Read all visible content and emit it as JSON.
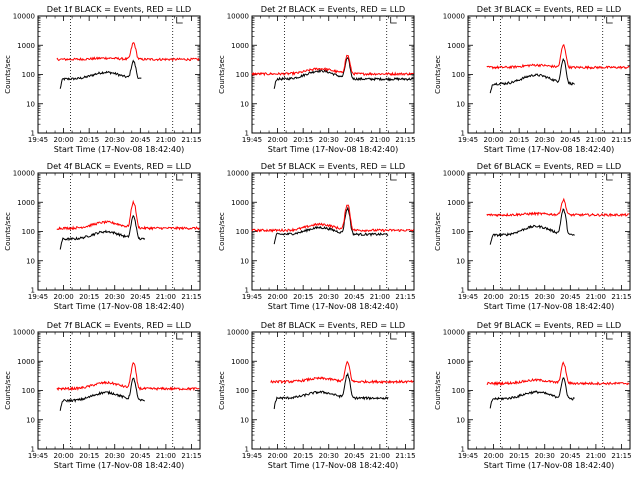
{
  "chart_data": [
    {
      "type": "line",
      "title": "Det 1f BLACK = Events, RED = LLD",
      "xlabel": "Start Time (17-Nov-08 18:42:40)",
      "ylabel": "Counts/sec",
      "yscale": "log",
      "ylim": [
        1,
        10000
      ],
      "xlim": [
        "19:45",
        "21:20"
      ],
      "xticks": [
        "19:45",
        "20:00",
        "20:15",
        "20:30",
        "20:45",
        "21:00",
        "21:15"
      ],
      "yticks": [
        "1",
        "10",
        "100",
        "1000",
        "10000"
      ],
      "vlines": [
        "20:04",
        "21:04"
      ],
      "series": [
        {
          "name": "BLACK = Events",
          "color": "#000000",
          "start": "19:58",
          "end": "20:46",
          "base": 70,
          "hump": 1.7,
          "peak": 280
        },
        {
          "name": "RED = LLD",
          "color": "#ff0000",
          "start": "19:56",
          "end": "21:20",
          "base": 330,
          "hump": 1.1,
          "peak": 1200
        }
      ]
    },
    {
      "type": "line",
      "title": "Det 2f BLACK = Events, RED = LLD",
      "xlabel": "Start Time (17-Nov-08 18:42:40)",
      "ylabel": "Counts/sec",
      "yscale": "log",
      "ylim": [
        1,
        10000
      ],
      "xlim": [
        "19:45",
        "21:20"
      ],
      "xticks": [
        "19:45",
        "20:00",
        "20:15",
        "20:30",
        "20:45",
        "21:00",
        "21:15"
      ],
      "yticks": [
        "1",
        "10",
        "100",
        "1000",
        "10000"
      ],
      "vlines": [
        "20:04",
        "21:04"
      ],
      "series": [
        {
          "name": "BLACK = Events",
          "color": "#000000",
          "start": "19:58",
          "end": "21:20",
          "base": 70,
          "hump": 1.9,
          "peak": 350
        },
        {
          "name": "RED = LLD",
          "color": "#ff0000",
          "start": "19:45",
          "end": "21:20",
          "base": 105,
          "hump": 1.5,
          "peak": 450
        }
      ]
    },
    {
      "type": "line",
      "title": "Det 3f BLACK = Events, RED = LLD",
      "xlabel": "Start Time (17-Nov-08 18:42:40)",
      "ylabel": "Counts/sec",
      "yscale": "log",
      "ylim": [
        1,
        10000
      ],
      "xlim": [
        "19:45",
        "21:20"
      ],
      "xticks": [
        "19:45",
        "20:00",
        "20:15",
        "20:30",
        "20:45",
        "21:00",
        "21:15"
      ],
      "yticks": [
        "1",
        "10",
        "100",
        "1000",
        "10000"
      ],
      "vlines": [
        "20:04",
        "21:04"
      ],
      "series": [
        {
          "name": "BLACK = Events",
          "color": "#000000",
          "start": "19:58",
          "end": "20:48",
          "base": 48,
          "hump": 2.0,
          "peak": 320
        },
        {
          "name": "RED = LLD",
          "color": "#ff0000",
          "start": "19:56",
          "end": "21:20",
          "base": 175,
          "hump": 1.2,
          "peak": 1000
        }
      ]
    },
    {
      "type": "line",
      "title": "Det 4f BLACK = Events, RED = LLD",
      "xlabel": "Start Time (17-Nov-08 18:42:40)",
      "ylabel": "Counts/sec",
      "yscale": "log",
      "ylim": [
        1,
        10000
      ],
      "xlim": [
        "19:45",
        "21:20"
      ],
      "xticks": [
        "19:45",
        "20:00",
        "20:15",
        "20:30",
        "20:45",
        "21:00",
        "21:15"
      ],
      "yticks": [
        "1",
        "10",
        "100",
        "1000",
        "10000"
      ],
      "vlines": [
        "20:04",
        "21:04"
      ],
      "series": [
        {
          "name": "BLACK = Events",
          "color": "#000000",
          "start": "19:58",
          "end": "20:48",
          "base": 55,
          "hump": 1.8,
          "peak": 330
        },
        {
          "name": "RED = LLD",
          "color": "#ff0000",
          "start": "19:56",
          "end": "21:20",
          "base": 130,
          "hump": 1.6,
          "peak": 1000
        }
      ]
    },
    {
      "type": "line",
      "title": "Det 5f BLACK = Events, RED = LLD",
      "xlabel": "Start Time (17-Nov-08 18:42:40)",
      "ylabel": "Counts/sec",
      "yscale": "log",
      "ylim": [
        1,
        10000
      ],
      "xlim": [
        "19:45",
        "21:20"
      ],
      "xticks": [
        "19:45",
        "20:00",
        "20:15",
        "20:30",
        "20:45",
        "21:00",
        "21:15"
      ],
      "yticks": [
        "1",
        "10",
        "100",
        "1000",
        "10000"
      ],
      "vlines": [
        "20:04",
        "21:04"
      ],
      "series": [
        {
          "name": "BLACK = Events",
          "color": "#000000",
          "start": "19:58",
          "end": "21:05",
          "base": 80,
          "hump": 1.7,
          "peak": 600
        },
        {
          "name": "RED = LLD",
          "color": "#ff0000",
          "start": "19:45",
          "end": "21:20",
          "base": 110,
          "hump": 1.6,
          "peak": 850
        }
      ]
    },
    {
      "type": "line",
      "title": "Det 6f BLACK = Events, RED = LLD",
      "xlabel": "Start Time (17-Nov-08 18:42:40)",
      "ylabel": "Counts/sec",
      "yscale": "log",
      "ylim": [
        1,
        10000
      ],
      "xlim": [
        "19:45",
        "21:20"
      ],
      "xticks": [
        "19:45",
        "20:00",
        "20:15",
        "20:30",
        "20:45",
        "21:00",
        "21:15"
      ],
      "yticks": [
        "1",
        "10",
        "100",
        "1000",
        "10000"
      ],
      "vlines": [
        "20:04",
        "21:04"
      ],
      "series": [
        {
          "name": "BLACK = Events",
          "color": "#000000",
          "start": "19:58",
          "end": "20:48",
          "base": 75,
          "hump": 2.0,
          "peak": 550
        },
        {
          "name": "RED = LLD",
          "color": "#ff0000",
          "start": "19:56",
          "end": "21:20",
          "base": 370,
          "hump": 1.1,
          "peak": 1200
        }
      ]
    },
    {
      "type": "line",
      "title": "Det 7f BLACK = Events, RED = LLD",
      "xlabel": "Start Time (17-Nov-08 18:42:40)",
      "ylabel": "Counts/sec",
      "yscale": "log",
      "ylim": [
        1,
        10000
      ],
      "xlim": [
        "19:45",
        "21:20"
      ],
      "xticks": [
        "19:45",
        "20:00",
        "20:15",
        "20:30",
        "20:45",
        "21:00",
        "21:15"
      ],
      "yticks": [
        "1",
        "10",
        "100",
        "1000",
        "10000"
      ],
      "vlines": [
        "20:04",
        "21:04"
      ],
      "series": [
        {
          "name": "BLACK = Events",
          "color": "#000000",
          "start": "19:58",
          "end": "20:48",
          "base": 45,
          "hump": 1.9,
          "peak": 250
        },
        {
          "name": "RED = LLD",
          "color": "#ff0000",
          "start": "19:56",
          "end": "21:20",
          "base": 115,
          "hump": 1.6,
          "peak": 850
        }
      ]
    },
    {
      "type": "line",
      "title": "Det 8f BLACK = Events, RED = LLD",
      "xlabel": "Start Time (17-Nov-08 18:42:40)",
      "ylabel": "Counts/sec",
      "yscale": "log",
      "ylim": [
        1,
        10000
      ],
      "xlim": [
        "19:45",
        "21:20"
      ],
      "xticks": [
        "19:45",
        "20:00",
        "20:15",
        "20:30",
        "20:45",
        "21:00",
        "21:15"
      ],
      "yticks": [
        "1",
        "10",
        "100",
        "1000",
        "10000"
      ],
      "vlines": [
        "20:04",
        "21:04"
      ],
      "series": [
        {
          "name": "BLACK = Events",
          "color": "#000000",
          "start": "19:58",
          "end": "21:05",
          "base": 55,
          "hump": 1.6,
          "peak": 350
        },
        {
          "name": "RED = LLD",
          "color": "#ff0000",
          "start": "19:56",
          "end": "21:20",
          "base": 200,
          "hump": 1.3,
          "peak": 900
        }
      ]
    },
    {
      "type": "line",
      "title": "Det 9f BLACK = Events, RED = LLD",
      "xlabel": "Start Time (17-Nov-08 18:42:40)",
      "ylabel": "Counts/sec",
      "yscale": "log",
      "ylim": [
        1,
        10000
      ],
      "xlim": [
        "19:45",
        "21:20"
      ],
      "xticks": [
        "19:45",
        "20:00",
        "20:15",
        "20:30",
        "20:45",
        "21:00",
        "21:15"
      ],
      "yticks": [
        "1",
        "10",
        "100",
        "1000",
        "10000"
      ],
      "vlines": [
        "20:04",
        "21:04"
      ],
      "series": [
        {
          "name": "BLACK = Events",
          "color": "#000000",
          "start": "19:58",
          "end": "20:48",
          "base": 52,
          "hump": 1.7,
          "peak": 250
        },
        {
          "name": "RED = LLD",
          "color": "#ff0000",
          "start": "19:56",
          "end": "21:20",
          "base": 175,
          "hump": 1.3,
          "peak": 850
        }
      ]
    }
  ]
}
